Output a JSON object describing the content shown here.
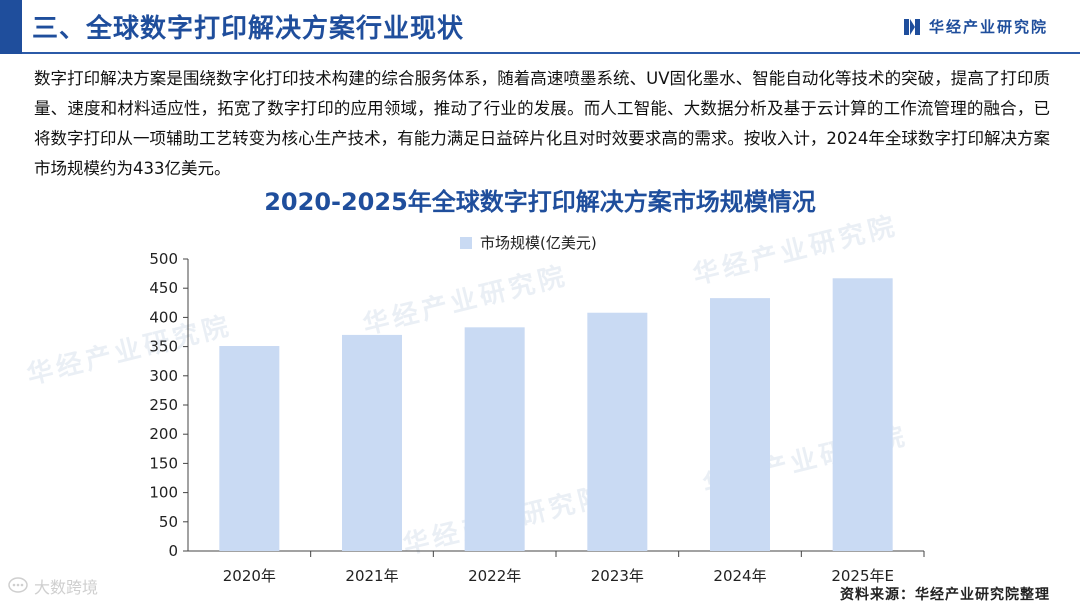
{
  "header": {
    "title": "三、全球数字打印解决方案行业现状",
    "brand": "华经产业研究院"
  },
  "intro_text": "数字打印解决方案是围绕数字化打印技术构建的综合服务体系，随着高速喷墨系统、UV固化墨水、智能自动化等技术的突破，提高了打印质量、速度和材料适应性，拓宽了数字打印的应用领域，推动了行业的发展。而人工智能、大数据分析及基于云计算的工作流管理的融合，已将数字打印从一项辅助工艺转变为核心生产技术，有能力满足日益碎片化且对时效要求高的需求。按收入计，2024年全球数字打印解决方案市场规模约为433亿美元。",
  "chart_data": {
    "type": "bar",
    "title": "2020-2025年全球数字打印解决方案市场规模情况",
    "categories": [
      "2020年",
      "2021年",
      "2022年",
      "2023年",
      "2024年",
      "2025年E"
    ],
    "series": [
      {
        "name": "市场规模(亿美元)",
        "values": [
          351,
          370,
          383,
          408,
          433,
          467
        ]
      }
    ],
    "ylim": [
      0,
      500
    ],
    "yticks": [
      0,
      50,
      100,
      150,
      200,
      250,
      300,
      350,
      400,
      450,
      500
    ],
    "grid": false,
    "legend_position": "top",
    "bar_color": "#c9daf3"
  },
  "footer": {
    "source": "资料来源：华经产业研究院整理",
    "corner_mark": "大数跨境"
  },
  "watermark_text": "华经产业研究院",
  "colors": {
    "accent": "#1f4e9c",
    "bar": "#c9daf3"
  }
}
